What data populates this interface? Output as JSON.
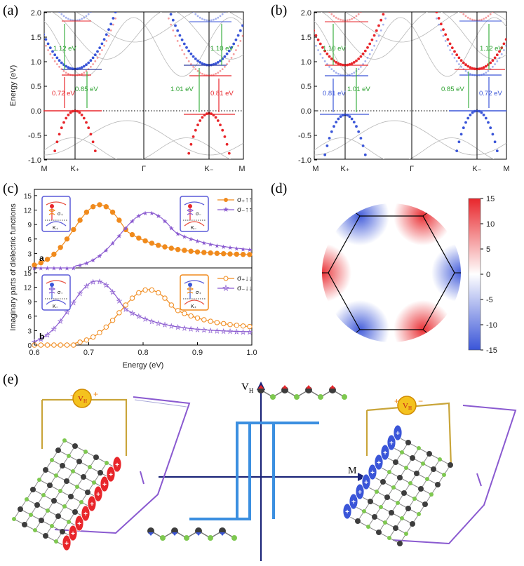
{
  "figure": {
    "panel_labels": [
      "(a)",
      "(b)",
      "(c)",
      "(d)",
      "(e)"
    ],
    "colors": {
      "red": "#e8262b",
      "blue": "#3a55d8",
      "green": "#3cb043",
      "orange": "#f08a1c",
      "purple": "#8a5ad0",
      "gray": "#b8b8b8",
      "cyan": "#3b8fe0",
      "navy": "#1a2478"
    }
  },
  "panel_a": {
    "ylabel": "Energy (eV)",
    "yticks": [
      "2.0",
      "1.5",
      "1.0",
      "0.5",
      "0.0",
      "-0.5",
      "-1.0"
    ],
    "kpoints": [
      "M",
      "K₊",
      "Γ",
      "K₋",
      "M"
    ],
    "annotations": {
      "gap_left_top": "1.12 eV",
      "gap_left_mid": "0.85 eV",
      "gap_left_red": "0.72 eV",
      "gap_right_top": "1.10 eV",
      "gap_right_mid": "1.01 eV",
      "gap_right_red": "0.81 eV"
    }
  },
  "panel_b": {
    "yticks": [
      "2.0",
      "1.5",
      "1.0",
      "0.5",
      "0.0",
      "-0.5",
      "-1.0"
    ],
    "kpoints": [
      "M",
      "K₊",
      "Γ",
      "K₋",
      "M"
    ],
    "annotations": {
      "gap_left_top": "1.10 eV",
      "gap_left_blue": "0.81 eV",
      "gap_left_mid": "1.01 eV",
      "gap_right_top": "1.12 eV",
      "gap_right_mid": "0.85 eV",
      "gap_right_blue": "0.72 eV"
    }
  },
  "panel_c": {
    "ylabel": "Imaginary parts of dielectric functions",
    "xlabel": "Energy (eV)",
    "xticks": [
      "0.6",
      "0.7",
      "0.8",
      "0.9",
      "1.0"
    ],
    "yticks": [
      "0",
      "3",
      "6",
      "9",
      "12",
      "15"
    ],
    "sub_a": "a",
    "sub_b": "b",
    "legend_a": [
      "σ₊↑↑",
      "σ₋↑↑"
    ],
    "legend_b": [
      "σ₊↓↓",
      "σ₋↓↓"
    ],
    "inset_labels": {
      "sigma_plus": "σ₊",
      "sigma_minus": "σ₋",
      "k_plus": "K₊",
      "k_minus": "K₋"
    }
  },
  "chart_data": [
    {
      "type": "line",
      "title": "(c) a",
      "xlabel": "Energy (eV)",
      "ylabel": "Imaginary parts of dielectric functions",
      "xlim": [
        0.6,
        1.0
      ],
      "ylim": [
        0,
        15
      ],
      "series": [
        {
          "name": "σ₊↑↑",
          "peak_x": 0.72,
          "peak_y": 13.1,
          "width": 0.048,
          "tail": 2.6
        },
        {
          "name": "σ₋↑↑",
          "peak_x": 0.81,
          "peak_y": 11.5,
          "width": 0.052,
          "tail": 3.2
        }
      ]
    },
    {
      "type": "line",
      "title": "(c) b",
      "xlabel": "Energy (eV)",
      "ylabel": "Imaginary parts of dielectric functions",
      "xlim": [
        0.6,
        1.0
      ],
      "ylim": [
        0,
        15
      ],
      "series": [
        {
          "name": "σ₋↓↓",
          "peak_x": 0.715,
          "peak_y": 13.3,
          "width": 0.048,
          "tail": 2.6
        },
        {
          "name": "σ₊↓↓",
          "peak_x": 0.81,
          "peak_y": 11.5,
          "width": 0.052,
          "tail": 3.2
        }
      ]
    },
    {
      "type": "heatmap",
      "title": "(d)",
      "colorbar_ticks": [
        "15",
        "10",
        "5",
        "0",
        "-5",
        "-10",
        "-15"
      ],
      "zlim": [
        -15,
        15
      ]
    }
  ],
  "panel_d": {
    "colorbar_ticks": [
      "15",
      "10",
      "5",
      "0",
      "-5",
      "-10",
      "-15"
    ]
  },
  "panel_e": {
    "axis_y": "Vᴴ",
    "axis_y_text": "V",
    "axis_y_sub": "H",
    "axis_x": "M",
    "vh_badge": "V",
    "vh_badge_sub": "H",
    "plus": "+",
    "minus": "−"
  }
}
